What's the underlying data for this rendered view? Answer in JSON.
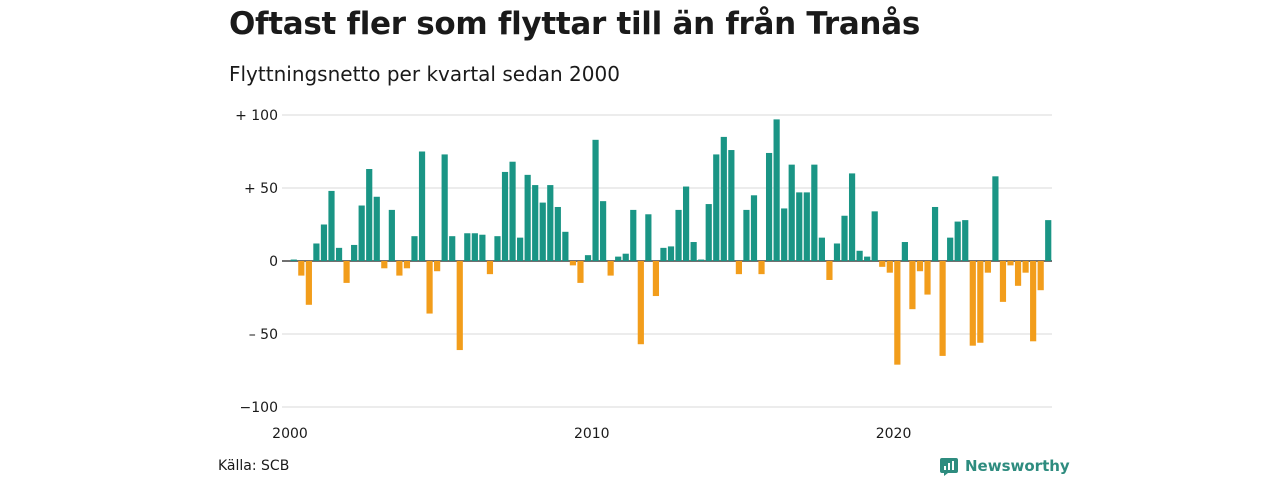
{
  "header": {
    "title": "Oftast fler som flyttar till än från Tranås",
    "subtitle": "Flyttningsnetto per kvartal sedan 2000"
  },
  "footer": {
    "source": "Källa: SCB",
    "brand": "Newsworthy",
    "brand_icon": "newsworthy-logo-icon"
  },
  "colors": {
    "positive": "#1a9585",
    "negative": "#f29d1b",
    "grid": "#d9d9d9",
    "axis": "#1a1a1a",
    "brand": "#2e8c7f"
  },
  "chart_data": {
    "type": "bar",
    "title": "Oftast fler som flyttar till än från Tranås",
    "subtitle": "Flyttningsnetto per kvartal sedan 2000",
    "xlabel": "",
    "ylabel": "",
    "ylim": [
      -100,
      100
    ],
    "grid": true,
    "y_ticks": [
      {
        "value": 100,
        "label": "+ 100"
      },
      {
        "value": 50,
        "label": "+  50"
      },
      {
        "value": 0,
        "label": "0"
      },
      {
        "value": -50,
        "label": "– 50"
      },
      {
        "value": -100,
        "label": "−100"
      }
    ],
    "x_ticks": [
      {
        "year": 2000,
        "label": "2000"
      },
      {
        "year": 2010,
        "label": "2010"
      },
      {
        "year": 2020,
        "label": "2020"
      }
    ],
    "start_year": 2000,
    "values": [
      1,
      -10,
      -30,
      12,
      25,
      48,
      9,
      -15,
      11,
      38,
      63,
      44,
      -5,
      35,
      -10,
      -5,
      17,
      75,
      -36,
      -7,
      73,
      17,
      -61,
      19,
      19,
      18,
      -9,
      17,
      61,
      68,
      16,
      59,
      52,
      40,
      52,
      37,
      20,
      -3,
      -15,
      4,
      83,
      41,
      -10,
      3,
      5,
      35,
      -57,
      32,
      -24,
      9,
      10,
      35,
      51,
      13,
      1,
      39,
      73,
      85,
      76,
      -9,
      35,
      45,
      -9,
      74,
      97,
      36,
      66,
      47,
      47,
      66,
      16,
      -13,
      12,
      31,
      60,
      7,
      3,
      34,
      -4,
      -8,
      -71,
      13,
      -33,
      -7,
      -23,
      37,
      -65,
      16,
      27,
      28,
      -58,
      -56,
      -8,
      58,
      -28,
      -3,
      -17,
      -8,
      -55,
      -20,
      28
    ]
  }
}
